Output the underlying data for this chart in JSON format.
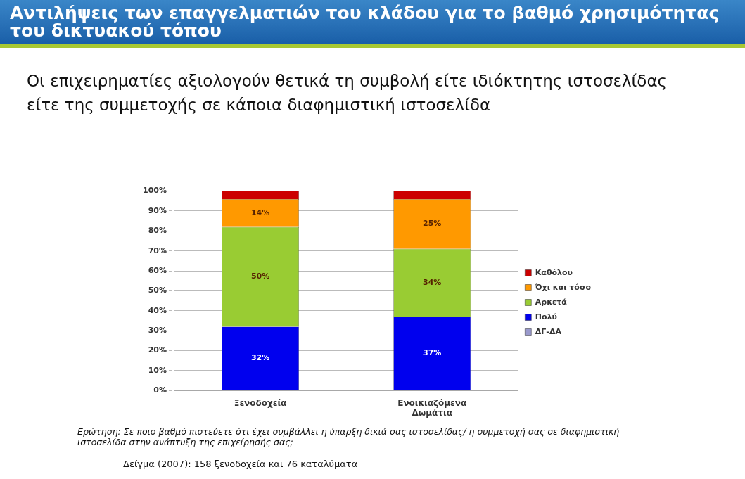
{
  "chart_data": {
    "type": "bar",
    "title": "Αντιλήψεις των επαγγελματιών του κλάδου για το βαθμό χρησιμότητας του δικτυακού τόπου",
    "subtitle": "Οι επιχειρηματίες αξιολογούν θετικά τη συμβολή είτε ιδιόκτητης ιστοσελίδας είτε της συμμετοχής σε κάποια διαφημιστική ιστοσελίδα",
    "categories": [
      "Ξενοδοχεία",
      "Ενοικιαζόμενα Δωμάτια"
    ],
    "stacked": true,
    "series": [
      {
        "name": "ΔΓ-ΔΑ",
        "color": "#9999cc",
        "values": [
          0,
          0
        ]
      },
      {
        "name": "Πολύ",
        "color": "#0000ee",
        "values": [
          32,
          37
        ],
        "value_labels": [
          "32%",
          "37%"
        ]
      },
      {
        "name": "Αρκετά",
        "color": "#99cc33",
        "values": [
          50,
          34
        ],
        "value_labels": [
          "50%",
          "34%"
        ]
      },
      {
        "name": "Όχι και τόσο",
        "color": "#ff9900",
        "values": [
          14,
          25
        ],
        "value_labels": [
          "14%",
          "25%"
        ]
      },
      {
        "name": "Καθόλου",
        "color": "#cc0000",
        "values": [
          4,
          4
        ]
      }
    ],
    "ylim": [
      0,
      100
    ],
    "yticks": [
      {
        "value": 0,
        "label": "0%"
      },
      {
        "value": 10,
        "label": "10%"
      },
      {
        "value": 20,
        "label": "20%"
      },
      {
        "value": 30,
        "label": "30%"
      },
      {
        "value": 40,
        "label": "40%"
      },
      {
        "value": 50,
        "label": "50%"
      },
      {
        "value": 60,
        "label": "60%"
      },
      {
        "value": 70,
        "label": "70%"
      },
      {
        "value": 80,
        "label": "80%"
      },
      {
        "value": 90,
        "label": "90%"
      },
      {
        "value": 100,
        "label": "100%"
      }
    ],
    "grid": "y",
    "legend": "right",
    "annotations": [
      "Ερώτηση: Σε ποιο βαθμό πιστεύετε ότι έχει συμβάλλει η ύπαρξη δικιά σας ιστοσελίδας/ η συμμετοχή σας σε διαφημιστική ιστοσελίδα στην ανάπτυξη της επιχείρησής σας;",
      "Δείγμα (2007): 158 ξενοδοχεία και 76 καταλύματα"
    ]
  }
}
